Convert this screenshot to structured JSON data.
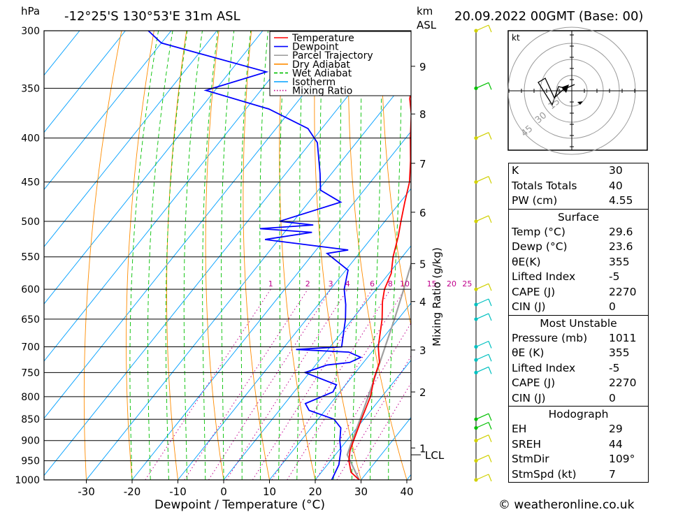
{
  "header": {
    "location": "-12°25'S 130°53'E 31m ASL",
    "datetime": "20.09.2022 00GMT (Base: 00)",
    "left_unit": "hPa",
    "right_unit_top": "km",
    "right_unit_bottom": "ASL"
  },
  "footer": {
    "credit": "© weatheronline.co.uk"
  },
  "chart_data": {
    "type": "skew-t",
    "xlabel": "Dewpoint / Temperature (°C)",
    "ylabel_right": "Mixing Ratio (g/kg)",
    "pressure_levels": [
      300,
      350,
      400,
      450,
      500,
      550,
      600,
      650,
      700,
      750,
      800,
      850,
      900,
      950,
      1000
    ],
    "temperature_ticks": [
      -30,
      -20,
      -10,
      0,
      10,
      20,
      30,
      40
    ],
    "height_ticks_km": [
      {
        "km": "1",
        "p": 918
      },
      {
        "km": "2",
        "p": 790
      },
      {
        "km": "3",
        "p": 706
      },
      {
        "km": "4",
        "p": 620
      },
      {
        "km": "5",
        "p": 560
      },
      {
        "km": "6",
        "p": 488
      },
      {
        "km": "7",
        "p": 428
      },
      {
        "km": "8",
        "p": 375
      },
      {
        "km": "9",
        "p": 330
      }
    ],
    "lcl": {
      "label": "LCL",
      "p": 935
    },
    "mixing_ratio_labels": [
      "1",
      "2",
      "3",
      "4",
      "6",
      "8",
      "10",
      "15",
      "20",
      "25"
    ],
    "legend": {
      "position": "top-right",
      "entries": [
        {
          "label": "Temperature",
          "color": "#ff0000",
          "style": "solid"
        },
        {
          "label": "Dewpoint",
          "color": "#0000ff",
          "style": "solid"
        },
        {
          "label": "Parcel Trajectory",
          "color": "#a0a0a0",
          "style": "solid"
        },
        {
          "label": "Dry Adiabat",
          "color": "#ff8c00",
          "style": "solid"
        },
        {
          "label": "Wet Adiabat",
          "color": "#00c000",
          "style": "dashed"
        },
        {
          "label": "Isotherm",
          "color": "#00a0ff",
          "style": "solid"
        },
        {
          "label": "Mixing Ratio",
          "color": "#c0008c",
          "style": "dotted"
        }
      ]
    },
    "temperature_profile": [
      {
        "p": 1000,
        "t": 29.6
      },
      {
        "p": 980,
        "t": 26.5
      },
      {
        "p": 950,
        "t": 24.0
      },
      {
        "p": 925,
        "t": 22.5
      },
      {
        "p": 900,
        "t": 21.5
      },
      {
        "p": 850,
        "t": 19.5
      },
      {
        "p": 800,
        "t": 17.5
      },
      {
        "p": 760,
        "t": 15.0
      },
      {
        "p": 730,
        "t": 13.5
      },
      {
        "p": 700,
        "t": 10.5
      },
      {
        "p": 650,
        "t": 6.5
      },
      {
        "p": 620,
        "t": 3.5
      },
      {
        "p": 600,
        "t": 1.8
      },
      {
        "p": 575,
        "t": 0.5
      },
      {
        "p": 550,
        "t": -2.0
      },
      {
        "p": 520,
        "t": -4.5
      },
      {
        "p": 500,
        "t": -6.5
      },
      {
        "p": 475,
        "t": -9.0
      },
      {
        "p": 450,
        "t": -11.5
      },
      {
        "p": 425,
        "t": -15.0
      },
      {
        "p": 400,
        "t": -19.0
      },
      {
        "p": 375,
        "t": -23.0
      },
      {
        "p": 360,
        "t": -26.0
      },
      {
        "p": 340,
        "t": -29.0
      },
      {
        "p": 320,
        "t": -33.0
      },
      {
        "p": 300,
        "t": -38.0
      }
    ],
    "dewpoint_profile": [
      {
        "p": 1000,
        "t": 23.6
      },
      {
        "p": 960,
        "t": 22.5
      },
      {
        "p": 925,
        "t": 20.5
      },
      {
        "p": 900,
        "t": 18.5
      },
      {
        "p": 870,
        "t": 16.5
      },
      {
        "p": 850,
        "t": 13.5
      },
      {
        "p": 830,
        "t": 6.5
      },
      {
        "p": 815,
        "t": 4.5
      },
      {
        "p": 790,
        "t": 8.5
      },
      {
        "p": 775,
        "t": 8.0
      },
      {
        "p": 750,
        "t": -1.0
      },
      {
        "p": 735,
        "t": 2.5
      },
      {
        "p": 730,
        "t": 7.0
      },
      {
        "p": 720,
        "t": 8.5
      },
      {
        "p": 710,
        "t": 5.0
      },
      {
        "p": 705,
        "t": -7.0
      },
      {
        "p": 700,
        "t": 2.5
      },
      {
        "p": 650,
        "t": -1.5
      },
      {
        "p": 625,
        "t": -4.0
      },
      {
        "p": 600,
        "t": -7.0
      },
      {
        "p": 570,
        "t": -9.5
      },
      {
        "p": 545,
        "t": -17.0
      },
      {
        "p": 540,
        "t": -13.0
      },
      {
        "p": 525,
        "t": -33.0
      },
      {
        "p": 515,
        "t": -24.0
      },
      {
        "p": 510,
        "t": -36.0
      },
      {
        "p": 505,
        "t": -25.0
      },
      {
        "p": 500,
        "t": -33.0
      },
      {
        "p": 475,
        "t": -23.0
      },
      {
        "p": 460,
        "t": -29.5
      },
      {
        "p": 440,
        "t": -32.5
      },
      {
        "p": 405,
        "t": -38.5
      },
      {
        "p": 390,
        "t": -43.0
      },
      {
        "p": 370,
        "t": -55.0
      },
      {
        "p": 352,
        "t": -72.0
      },
      {
        "p": 335,
        "t": -62.0
      },
      {
        "p": 310,
        "t": -90.0
      },
      {
        "p": 300,
        "t": -95.0
      }
    ],
    "parcel_profile": [
      {
        "p": 1000,
        "t": 29.6
      },
      {
        "p": 935,
        "t": 22.6
      },
      {
        "p": 900,
        "t": 21.2
      },
      {
        "p": 850,
        "t": 19.2
      },
      {
        "p": 800,
        "t": 17.0
      },
      {
        "p": 750,
        "t": 14.6
      },
      {
        "p": 700,
        "t": 12.0
      },
      {
        "p": 650,
        "t": 9.2
      },
      {
        "p": 600,
        "t": 6.0
      },
      {
        "p": 550,
        "t": 2.4
      },
      {
        "p": 500,
        "t": -1.8
      },
      {
        "p": 450,
        "t": -6.8
      },
      {
        "p": 400,
        "t": -12.8
      },
      {
        "p": 350,
        "t": -20.5
      }
    ],
    "wind_barbs": [
      {
        "p": 300,
        "color": "#d0d000"
      },
      {
        "p": 350,
        "color": "#00c000"
      },
      {
        "p": 400,
        "color": "#d0d000"
      },
      {
        "p": 450,
        "color": "#d0d000"
      },
      {
        "p": 500,
        "color": "#d0d000"
      },
      {
        "p": 600,
        "color": "#d0d000"
      },
      {
        "p": 625,
        "color": "#00c0c0"
      },
      {
        "p": 650,
        "color": "#00c0c0"
      },
      {
        "p": 700,
        "color": "#00c0c0"
      },
      {
        "p": 725,
        "color": "#00c0c0"
      },
      {
        "p": 750,
        "color": "#00c0c0"
      },
      {
        "p": 850,
        "color": "#00c000"
      },
      {
        "p": 870,
        "color": "#00c000"
      },
      {
        "p": 900,
        "color": "#d0d000"
      },
      {
        "p": 950,
        "color": "#d0d000"
      },
      {
        "p": 1000,
        "color": "#d0d000"
      }
    ],
    "hodograph": {
      "unit": "kt",
      "ring_labels": [
        "15",
        "30",
        "45"
      ]
    }
  },
  "indices": {
    "general": [
      {
        "label": "K",
        "value": "30"
      },
      {
        "label": "Totals Totals",
        "value": "40"
      },
      {
        "label": "PW (cm)",
        "value": "4.55"
      }
    ],
    "surface_title": "Surface",
    "surface": [
      {
        "label": "Temp (°C)",
        "value": "29.6"
      },
      {
        "label": "Dewp (°C)",
        "value": "23.6"
      },
      {
        "label": "θE(K)",
        "value": "355"
      },
      {
        "label": "Lifted Index",
        "value": "-5"
      },
      {
        "label": "CAPE (J)",
        "value": "2270"
      },
      {
        "label": "CIN (J)",
        "value": "0"
      }
    ],
    "unstable_title": "Most Unstable",
    "unstable": [
      {
        "label": "Pressure (mb)",
        "value": "1011"
      },
      {
        "label": "θE (K)",
        "value": "355"
      },
      {
        "label": "Lifted Index",
        "value": "-5"
      },
      {
        "label": "CAPE (J)",
        "value": "2270"
      },
      {
        "label": "CIN (J)",
        "value": "0"
      }
    ],
    "hodograph_title": "Hodograph",
    "hodograph": [
      {
        "label": "EH",
        "value": "29"
      },
      {
        "label": "SREH",
        "value": "44"
      },
      {
        "label": "StmDir",
        "value": "109°"
      },
      {
        "label": "StmSpd (kt)",
        "value": "7"
      }
    ]
  }
}
